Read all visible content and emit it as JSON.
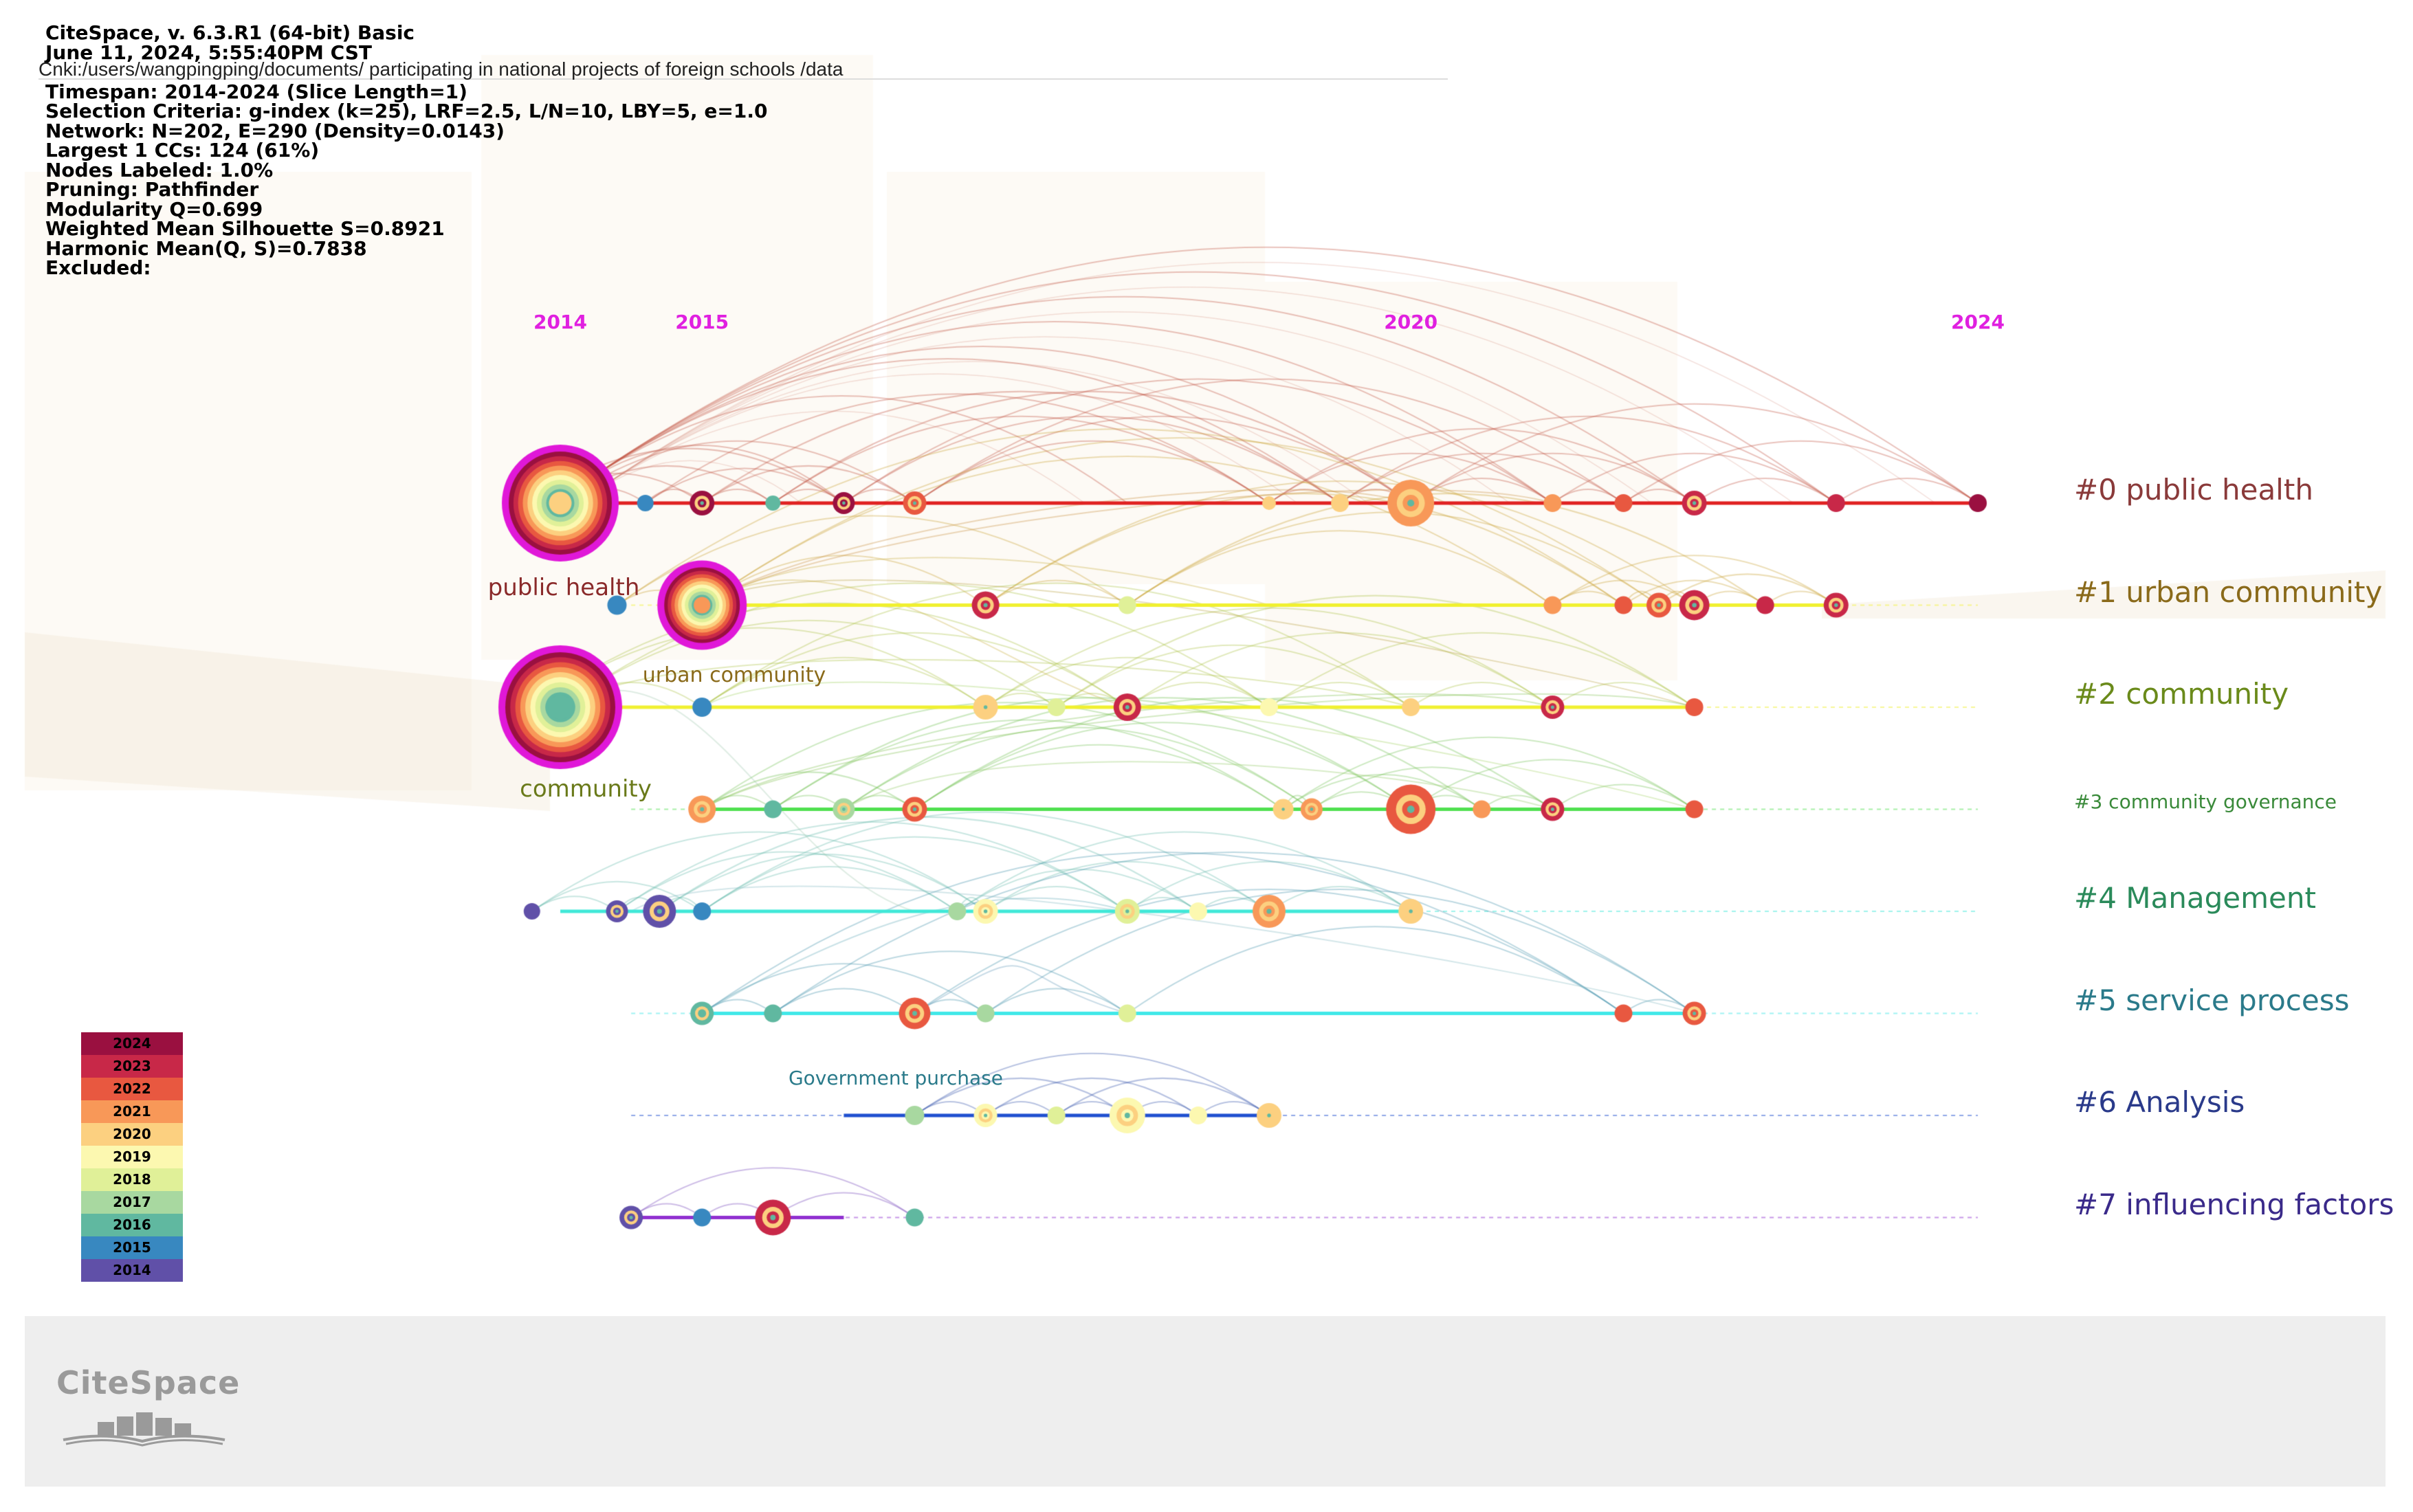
{
  "app": {
    "title": "CiteSpace, v. 6.3.R1 (64-bit) Basic",
    "date": "June 11, 2024, 5:55:40PM CST",
    "path": "Cnki:/users/wangpingping/documents/ participating in national projects of foreign schools /data",
    "timespan": "Timespan: 2014-2024 (Slice Length=1)",
    "selection": "Selection Criteria: g-index (k=25), LRF=2.5, L/N=10, LBY=5, e=1.0",
    "network": "Network: N=202, E=290 (Density=0.0143)",
    "largest_cc": "Largest 1 CCs: 124 (61%)",
    "nodes_labeled": "Nodes Labeled: 1.0%",
    "pruning": "Pruning: Pathfinder",
    "modularity": "Modularity Q=0.699",
    "silhouette": "Weighted Mean Silhouette S=0.8921",
    "harmonic": "Harmonic Mean(Q, S)=0.7838",
    "excluded": "Excluded:"
  },
  "logo_text": "CiteSpace",
  "year_labels": [
    {
      "year": 2014,
      "label": "2014"
    },
    {
      "year": 2015,
      "label": "2015"
    },
    {
      "year": 2020,
      "label": "2020"
    },
    {
      "year": 2024,
      "label": "2024"
    }
  ],
  "year_label_color": "#e020e0",
  "clusters": [
    {
      "id": 0,
      "label": "#0 public health",
      "color": "#8a3a3a",
      "line_color": "#e02020",
      "start": 2014.0,
      "end": 2024.0
    },
    {
      "id": 1,
      "label": "#1 urban community",
      "color": "#8a6a1a",
      "line_color": "#f0f030",
      "start": 2015.0,
      "end": 2023.0
    },
    {
      "id": 2,
      "label": "#2 community",
      "color": "#6a8a1a",
      "line_color": "#f0f030",
      "start": 2014.0,
      "end": 2022.0
    },
    {
      "id": 3,
      "label": "#3 community governance",
      "color": "#3a8a3a",
      "line_color": "#50e050",
      "start": 2015.0,
      "end": 2022.0
    },
    {
      "id": 4,
      "label": "#4 Management",
      "color": "#2a8a5a",
      "line_color": "#40e8d8",
      "start": 2014.0,
      "end": 2020.0
    },
    {
      "id": 5,
      "label": "#5 service process",
      "color": "#2a7a8a",
      "line_color": "#40e8e8",
      "start": 2015.0,
      "end": 2022.0
    },
    {
      "id": 6,
      "label": "#6 Analysis",
      "color": "#2a3a8a",
      "line_color": "#2050d0",
      "start": 2016.0,
      "end": 2019.0
    },
    {
      "id": 7,
      "label": "#7 influencing factors",
      "color": "#3a2a8a",
      "line_color": "#9030d0",
      "start": 2014.5,
      "end": 2016.0
    }
  ],
  "node_labels": [
    {
      "text": "public health",
      "color": "#8a2a2a",
      "year": 2014.0,
      "cluster": 0,
      "offset": "below"
    },
    {
      "text": "urban community",
      "color": "#8a6a1a",
      "year": 2015.3,
      "cluster": 1,
      "offset": "below"
    },
    {
      "text": "community",
      "color": "#6a7a1a",
      "year": 2014.0,
      "cluster": 2,
      "offset": "below"
    },
    {
      "text": "Government purchase",
      "color": "#2a7a8a",
      "year": 2017.5,
      "cluster": 5,
      "offset": "below"
    }
  ],
  "legend": [
    {
      "year": "2024",
      "color": "#9a1040"
    },
    {
      "year": "2023",
      "color": "#c82848"
    },
    {
      "year": "2022",
      "color": "#e85840"
    },
    {
      "year": "2021",
      "color": "#f89858"
    },
    {
      "year": "2020",
      "color": "#fcd080"
    },
    {
      "year": "2019",
      "color": "#fcf8b0"
    },
    {
      "year": "2018",
      "color": "#e0f098"
    },
    {
      "year": "2017",
      "color": "#a8d8a0"
    },
    {
      "year": "2016",
      "color": "#60b8a0"
    },
    {
      "year": "2015",
      "color": "#3888c0"
    },
    {
      "year": "2014",
      "color": "#6050a8"
    }
  ],
  "nodes": [
    {
      "c": 0,
      "y": 2013.8,
      "r": 12,
      "col": "#6050a8"
    },
    {
      "c": 0,
      "y": 2014.0,
      "r": 75,
      "col": "#fcd080",
      "big": true
    },
    {
      "c": 0,
      "y": 2014.6,
      "r": 12,
      "col": "#3888c0"
    },
    {
      "c": 0,
      "y": 2015.0,
      "r": 18,
      "col": "#9a1040"
    },
    {
      "c": 0,
      "y": 2015.5,
      "r": 11,
      "col": "#60b8a0"
    },
    {
      "c": 0,
      "y": 2016.0,
      "r": 16,
      "col": "#9a1040"
    },
    {
      "c": 0,
      "y": 2016.5,
      "r": 17,
      "col": "#e85840"
    },
    {
      "c": 0,
      "y": 2019.0,
      "r": 10,
      "col": "#fcd080"
    },
    {
      "c": 0,
      "y": 2019.5,
      "r": 13,
      "col": "#fcd080"
    },
    {
      "c": 0,
      "y": 2020.0,
      "r": 34,
      "col": "#f89858"
    },
    {
      "c": 0,
      "y": 2021.0,
      "r": 13,
      "col": "#f89858"
    },
    {
      "c": 0,
      "y": 2021.5,
      "r": 13,
      "col": "#e85840"
    },
    {
      "c": 0,
      "y": 2022.0,
      "r": 18,
      "col": "#c82848"
    },
    {
      "c": 0,
      "y": 2023.0,
      "r": 13,
      "col": "#c82848"
    },
    {
      "c": 0,
      "y": 2024.0,
      "r": 13,
      "col": "#9a1040"
    },
    {
      "c": 1,
      "y": 2014.4,
      "r": 14,
      "col": "#3888c0"
    },
    {
      "c": 1,
      "y": 2015.0,
      "r": 55,
      "col": "#f89858",
      "big": true
    },
    {
      "c": 1,
      "y": 2017.0,
      "r": 20,
      "col": "#c82848"
    },
    {
      "c": 1,
      "y": 2018.0,
      "r": 13,
      "col": "#e0f098"
    },
    {
      "c": 1,
      "y": 2021.0,
      "r": 13,
      "col": "#f89858"
    },
    {
      "c": 1,
      "y": 2021.5,
      "r": 13,
      "col": "#e85840"
    },
    {
      "c": 1,
      "y": 2021.75,
      "r": 18,
      "col": "#e85840"
    },
    {
      "c": 1,
      "y": 2022.0,
      "r": 22,
      "col": "#c82848"
    },
    {
      "c": 1,
      "y": 2022.5,
      "r": 13,
      "col": "#c82848"
    },
    {
      "c": 1,
      "y": 2023.0,
      "r": 18,
      "col": "#c82848"
    },
    {
      "c": 2,
      "y": 2013.8,
      "r": 24,
      "col": "#6050a8"
    },
    {
      "c": 2,
      "y": 2014.0,
      "r": 80,
      "col": "#60b8a0",
      "big": true
    },
    {
      "c": 2,
      "y": 2015.0,
      "r": 14,
      "col": "#3888c0"
    },
    {
      "c": 2,
      "y": 2017.0,
      "r": 18,
      "col": "#fcd080"
    },
    {
      "c": 2,
      "y": 2017.5,
      "r": 13,
      "col": "#e0f098"
    },
    {
      "c": 2,
      "y": 2018.0,
      "r": 20,
      "col": "#c82848"
    },
    {
      "c": 2,
      "y": 2019.0,
      "r": 13,
      "col": "#fcf8b0"
    },
    {
      "c": 2,
      "y": 2020.0,
      "r": 13,
      "col": "#fcd080"
    },
    {
      "c": 2,
      "y": 2021.0,
      "r": 17,
      "col": "#c82848"
    },
    {
      "c": 2,
      "y": 2022.0,
      "r": 13,
      "col": "#e85840"
    },
    {
      "c": 3,
      "y": 2015.0,
      "r": 20,
      "col": "#f89858"
    },
    {
      "c": 3,
      "y": 2015.5,
      "r": 13,
      "col": "#60b8a0"
    },
    {
      "c": 3,
      "y": 2016.0,
      "r": 16,
      "col": "#a8d8a0"
    },
    {
      "c": 3,
      "y": 2016.5,
      "r": 18,
      "col": "#e85840"
    },
    {
      "c": 3,
      "y": 2019.1,
      "r": 15,
      "col": "#fcd080"
    },
    {
      "c": 3,
      "y": 2019.3,
      "r": 16,
      "col": "#f89858"
    },
    {
      "c": 3,
      "y": 2020.0,
      "r": 36,
      "col": "#e85840"
    },
    {
      "c": 3,
      "y": 2020.5,
      "r": 13,
      "col": "#f89858"
    },
    {
      "c": 3,
      "y": 2021.0,
      "r": 17,
      "col": "#c82848"
    },
    {
      "c": 3,
      "y": 2022.0,
      "r": 13,
      "col": "#e85840"
    },
    {
      "c": 4,
      "y": 2013.8,
      "r": 12,
      "col": "#6050a8"
    },
    {
      "c": 4,
      "y": 2014.4,
      "r": 16,
      "col": "#6050a8"
    },
    {
      "c": 4,
      "y": 2014.7,
      "r": 24,
      "col": "#6050a8"
    },
    {
      "c": 4,
      "y": 2015.0,
      "r": 13,
      "col": "#3888c0"
    },
    {
      "c": 4,
      "y": 2016.8,
      "r": 13,
      "col": "#a8d8a0"
    },
    {
      "c": 4,
      "y": 2017.0,
      "r": 18,
      "col": "#fcf8b0"
    },
    {
      "c": 4,
      "y": 2018.0,
      "r": 18,
      "col": "#e0f098"
    },
    {
      "c": 4,
      "y": 2018.5,
      "r": 13,
      "col": "#fcf8b0"
    },
    {
      "c": 4,
      "y": 2019.0,
      "r": 24,
      "col": "#f89858"
    },
    {
      "c": 4,
      "y": 2020.0,
      "r": 18,
      "col": "#fcd080"
    },
    {
      "c": 5,
      "y": 2015.0,
      "r": 17,
      "col": "#60b8a0"
    },
    {
      "c": 5,
      "y": 2015.5,
      "r": 13,
      "col": "#60b8a0"
    },
    {
      "c": 5,
      "y": 2016.5,
      "r": 23,
      "col": "#e85840"
    },
    {
      "c": 5,
      "y": 2017.0,
      "r": 13,
      "col": "#a8d8a0"
    },
    {
      "c": 5,
      "y": 2018.0,
      "r": 13,
      "col": "#e0f098"
    },
    {
      "c": 5,
      "y": 2021.5,
      "r": 13,
      "col": "#e85840"
    },
    {
      "c": 5,
      "y": 2022.0,
      "r": 17,
      "col": "#e85840"
    },
    {
      "c": 6,
      "y": 2016.5,
      "r": 14,
      "col": "#a8d8a0"
    },
    {
      "c": 6,
      "y": 2017.0,
      "r": 17,
      "col": "#fcf8b0"
    },
    {
      "c": 6,
      "y": 2017.5,
      "r": 13,
      "col": "#e0f098"
    },
    {
      "c": 6,
      "y": 2018.0,
      "r": 26,
      "col": "#fcf8b0"
    },
    {
      "c": 6,
      "y": 2018.5,
      "r": 13,
      "col": "#fcf8b0"
    },
    {
      "c": 6,
      "y": 2019.0,
      "r": 18,
      "col": "#fcd080"
    },
    {
      "c": 7,
      "y": 2014.5,
      "r": 17,
      "col": "#6050a8"
    },
    {
      "c": 7,
      "y": 2015.0,
      "r": 13,
      "col": "#3888c0"
    },
    {
      "c": 7,
      "y": 2015.5,
      "r": 26,
      "col": "#c82848"
    },
    {
      "c": 7,
      "y": 2016.5,
      "r": 13,
      "col": "#60b8a0"
    }
  ]
}
